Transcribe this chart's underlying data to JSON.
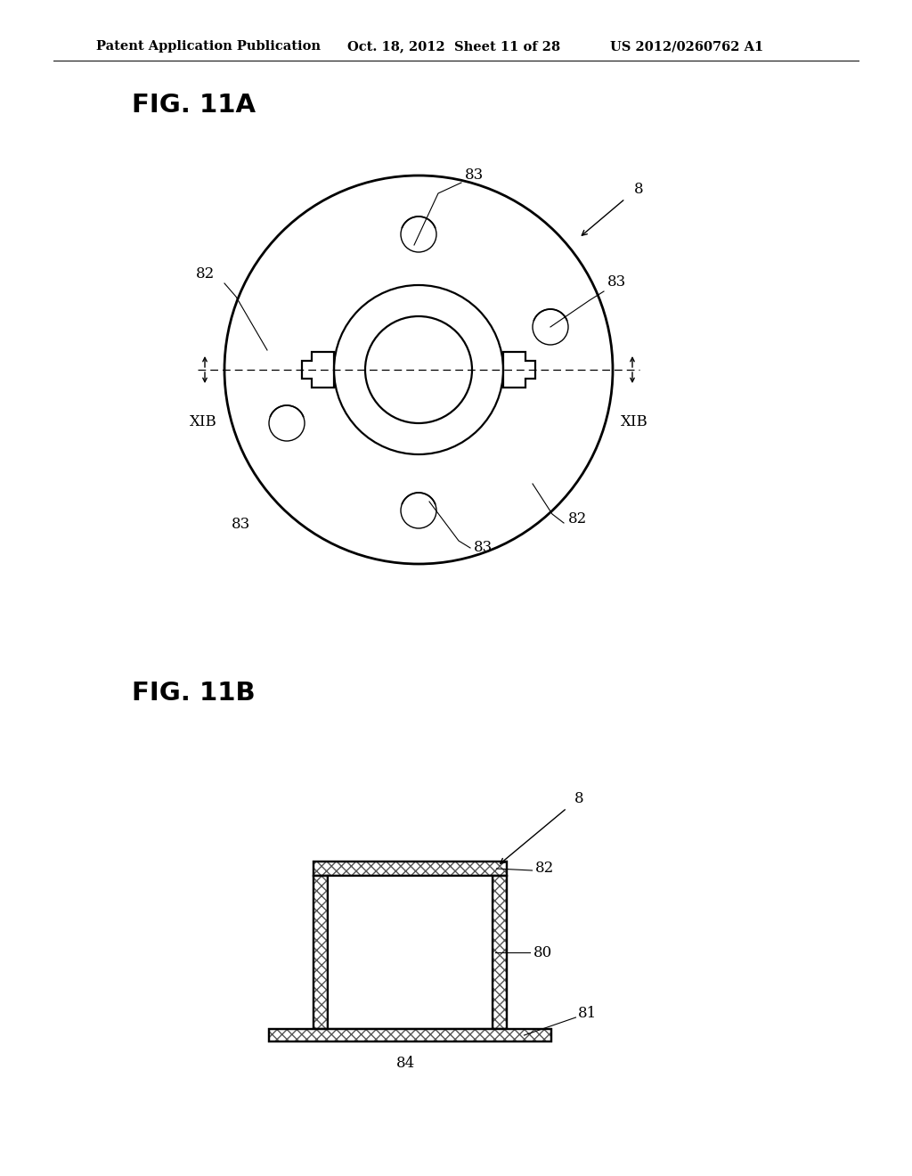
{
  "bg_color": "#ffffff",
  "header_left": "Patent Application Publication",
  "header_mid": "Oct. 18, 2012  Sheet 11 of 28",
  "header_right": "US 2012/0260762 A1",
  "fig11a_label": "FIG. 11A",
  "fig11b_label": "FIG. 11B",
  "line_color": "#000000"
}
